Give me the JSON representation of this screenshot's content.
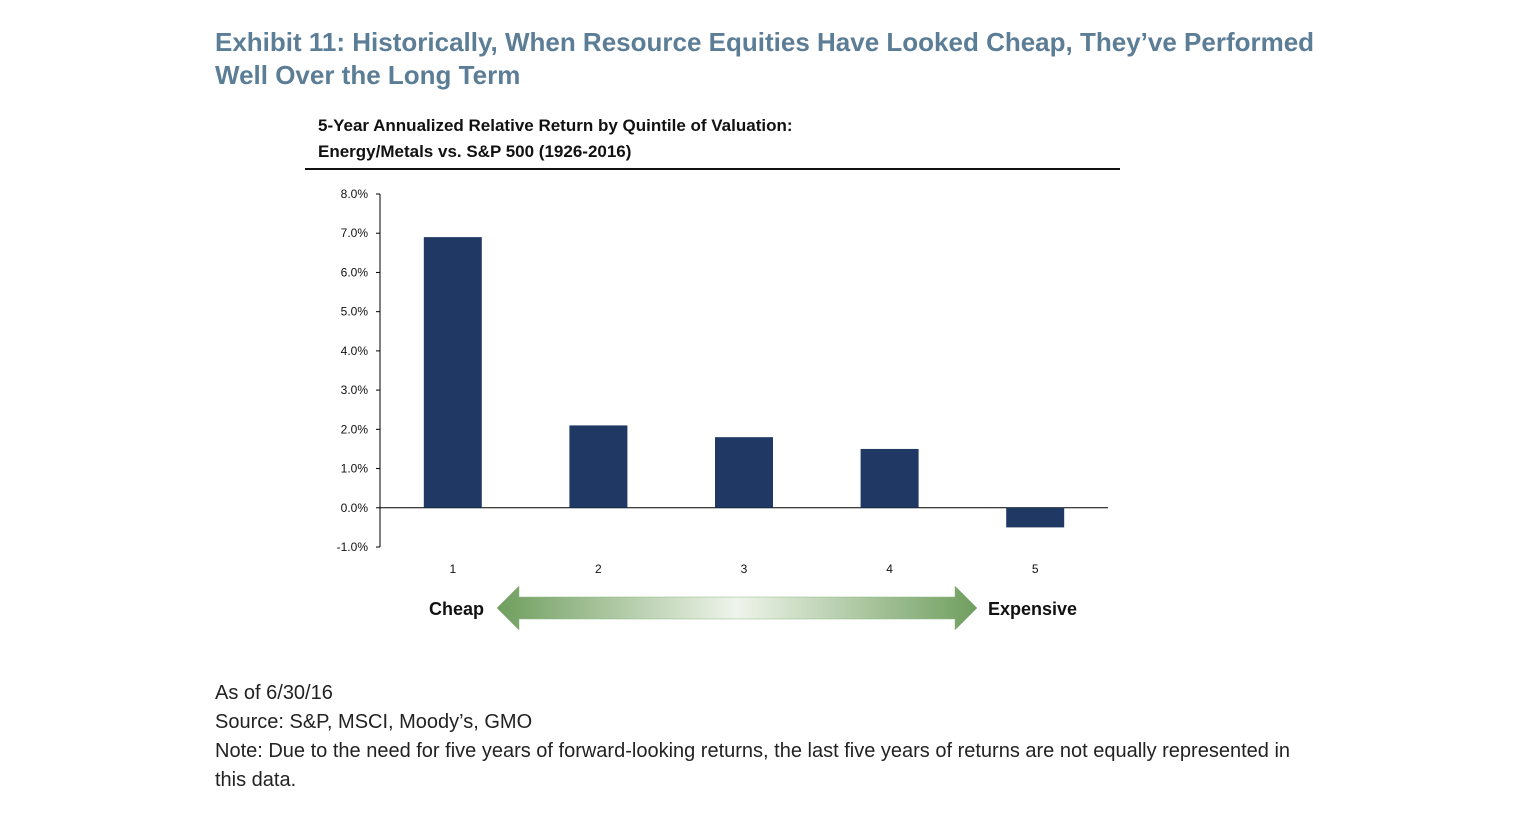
{
  "exhibit": {
    "title": "Exhibit 11: Historically, When Resource Equities Have Looked Cheap, They’ve Performed Well Over the Long Term"
  },
  "chart_data": {
    "type": "bar",
    "title": "5-Year Annualized Relative Return by Quintile of Valuation:",
    "subtitle": "Energy/Metals vs. S&P 500 (1926-2016)",
    "categories": [
      "1",
      "2",
      "3",
      "4",
      "5"
    ],
    "values": [
      6.9,
      2.1,
      1.8,
      1.5,
      -0.5
    ],
    "ylim": [
      -1.0,
      8.0
    ],
    "yticks": [
      8.0,
      7.0,
      6.0,
      5.0,
      4.0,
      3.0,
      2.0,
      1.0,
      0.0,
      -1.0
    ],
    "ytick_labels": [
      "8.0%",
      "7.0%",
      "6.0%",
      "5.0%",
      "4.0%",
      "3.0%",
      "2.0%",
      "1.0%",
      "0.0%",
      "-1.0%"
    ],
    "bar_color": "#1f3864",
    "grid": false,
    "scale_annotation": {
      "left_label": "Cheap",
      "right_label": "Expensive",
      "arrow_color": "#6f9e5e"
    }
  },
  "footer": {
    "as_of": "As of 6/30/16",
    "source": "Source: S&P, MSCI, Moody’s, GMO",
    "note": "Note: Due to the need for five years of forward-looking returns, the last five years of returns are not equally represented in this data."
  }
}
